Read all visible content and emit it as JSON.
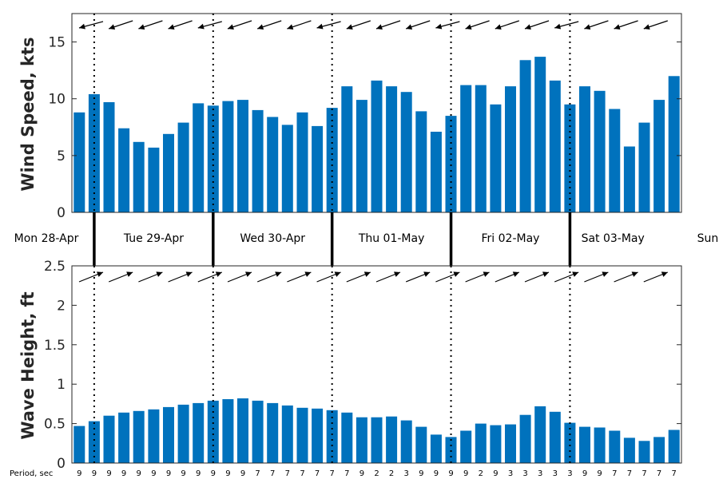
{
  "chart_data": [
    {
      "type": "bar",
      "ylabel": "Wind Speed, kts",
      "ylim": [
        0,
        17.5
      ],
      "yticks": [
        "0",
        "5",
        "10",
        "15"
      ],
      "color": "#0072BD",
      "values": [
        8.8,
        10.4,
        9.7,
        7.4,
        6.2,
        5.7,
        6.9,
        7.9,
        9.6,
        9.4,
        9.8,
        9.9,
        9.0,
        8.4,
        7.7,
        8.8,
        7.6,
        9.2,
        11.1,
        9.9,
        11.6,
        11.1,
        10.6,
        8.9,
        7.1,
        8.5,
        11.2,
        11.2,
        9.5,
        11.1,
        13.4,
        13.7,
        11.6,
        9.5,
        11.1,
        10.7,
        9.1,
        5.8,
        7.9,
        9.9,
        12.0
      ],
      "direction_arrows": "wind direction arrows shown above bars (pointing roughly west)"
    },
    {
      "type": "bar",
      "ylabel": "Wave Height, ft",
      "ylim": [
        0,
        2.5
      ],
      "yticks": [
        "0",
        "0.5",
        "1",
        "1.5",
        "2",
        "2.5"
      ],
      "color": "#0072BD",
      "values": [
        0.47,
        0.53,
        0.6,
        0.64,
        0.66,
        0.68,
        0.71,
        0.74,
        0.76,
        0.79,
        0.81,
        0.82,
        0.79,
        0.76,
        0.73,
        0.7,
        0.69,
        0.67,
        0.64,
        0.58,
        0.58,
        0.59,
        0.54,
        0.46,
        0.36,
        0.33,
        0.41,
        0.5,
        0.48,
        0.49,
        0.61,
        0.72,
        0.65,
        0.51,
        0.46,
        0.45,
        0.41,
        0.32,
        0.28,
        0.33,
        0.42
      ],
      "period_label": "Period, sec",
      "periods": [
        "9",
        "9",
        "9",
        "9",
        "9",
        "9",
        "9",
        "9",
        "9",
        "9",
        "9",
        "9",
        "7",
        "7",
        "7",
        "7",
        "7",
        "7",
        "7",
        "9",
        "2",
        "2",
        "3",
        "9",
        "9",
        "9",
        "9",
        "2",
        "9",
        "3",
        "3",
        "3",
        "3",
        "3",
        "9",
        "9",
        "7",
        "7",
        "7",
        "7",
        "7"
      ]
    }
  ],
  "days": [
    "Mon 28-Apr",
    "Tue 29-Apr",
    "Wed 30-Apr",
    "Thu 01-May",
    "Fri 02-May",
    "Sat 03-May",
    "Sun"
  ]
}
